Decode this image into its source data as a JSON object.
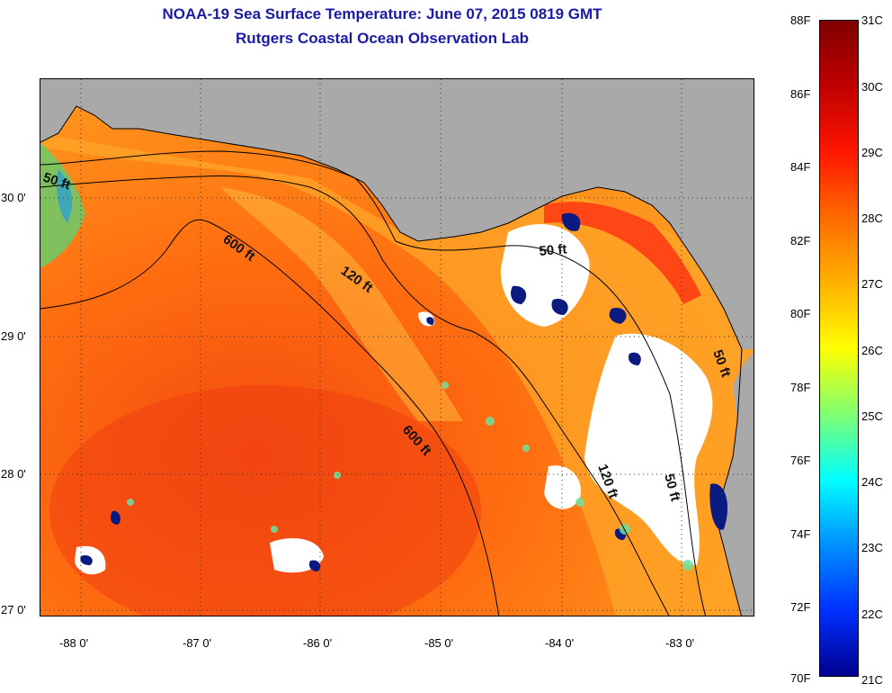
{
  "header": {
    "title_line1": "NOAA-19 Sea Surface Temperature:  June 07, 2015 0819 GMT",
    "title_line2": "Rutgers Coastal Ocean Observation Lab"
  },
  "map": {
    "lon_labels": [
      "-88 0'",
      "-87 0'",
      "-86 0'",
      "-85 0'",
      "-84 0'",
      "-83 0'"
    ],
    "lat_labels": [
      "30 0'",
      "29 0'",
      "28 0'",
      "27 0'"
    ],
    "contour_labels": [
      "50 ft",
      "600 ft",
      "120 ft",
      "600 ft",
      "120 ft",
      "50 ft",
      "50 ft",
      "50 ft"
    ],
    "colors": {
      "land": "#a9a9a9",
      "warm_water": "#ff7a10",
      "cloud": "#ffffff",
      "cold": "#001070"
    }
  },
  "colorbar": {
    "fahrenheit_labels": [
      "88F",
      "86F",
      "84F",
      "82F",
      "80F",
      "78F",
      "76F",
      "74F",
      "72F",
      "70F"
    ],
    "celsius_labels": [
      "31C",
      "30C",
      "29C",
      "28C",
      "27C",
      "26C",
      "25C",
      "24C",
      "23C",
      "22C",
      "21C"
    ],
    "colors_top_to_bottom": [
      "#7f0000",
      "#c00000",
      "#ff1500",
      "#ff6a00",
      "#ffb000",
      "#ffff00",
      "#80ff70",
      "#00ffff",
      "#0090ff",
      "#0030ff",
      "#00008f"
    ]
  }
}
